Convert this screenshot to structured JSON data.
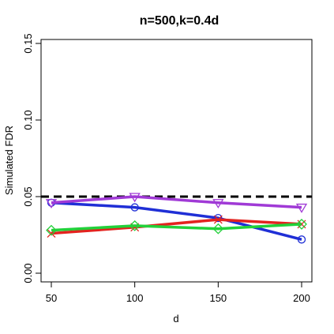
{
  "chart_data": {
    "type": "line",
    "title": "n=500,k=0.4d",
    "xlabel": "d",
    "ylabel": "Simulated FDR",
    "x": [
      50,
      100,
      150,
      200
    ],
    "xlim": [
      50,
      200
    ],
    "ylim": [
      0,
      0.15
    ],
    "xticks": [
      50,
      100,
      150,
      200
    ],
    "yticks": [
      0.0,
      0.05,
      0.1,
      0.15
    ],
    "xtick_labels": [
      "50",
      "100",
      "150",
      "200"
    ],
    "ytick_labels": [
      "0.00",
      "0.05",
      "0.10",
      "0.15"
    ],
    "grid": false,
    "reference_line": {
      "y": 0.05,
      "style": "dashed",
      "color": "#000000"
    },
    "series": [
      {
        "values": [
          0.046,
          0.043,
          0.036,
          0.022
        ],
        "color": "#1f2fd6",
        "marker": "circle"
      },
      {
        "values": [
          0.046,
          0.05,
          0.046,
          0.043
        ],
        "color": "#a03ad6",
        "marker": "triangle-down"
      },
      {
        "values": [
          0.026,
          0.03,
          0.035,
          0.032
        ],
        "color": "#e3231f",
        "marker": "x"
      },
      {
        "values": [
          0.028,
          0.031,
          0.029,
          0.032
        ],
        "color": "#22d13a",
        "marker": "diamond"
      }
    ]
  }
}
